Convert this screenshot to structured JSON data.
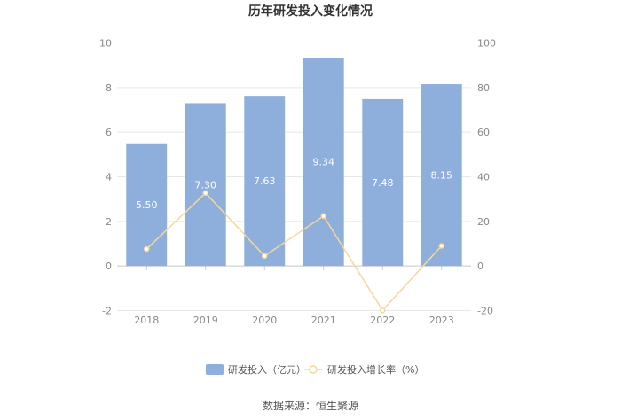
{
  "chart_data": {
    "type": "bar",
    "title": "历年研发投入变化情况",
    "categories": [
      "2018",
      "2019",
      "2020",
      "2021",
      "2022",
      "2023"
    ],
    "series": [
      {
        "name": "研发投入（亿元）",
        "type": "bar",
        "axis": "left",
        "color": "#8eaedb",
        "values": [
          5.5,
          7.3,
          7.63,
          9.34,
          7.48,
          8.15
        ],
        "labels": [
          "5.50",
          "7.30",
          "7.63",
          "9.34",
          "7.48",
          "8.15"
        ]
      },
      {
        "name": "研发投入增长率（%）",
        "type": "line",
        "axis": "right",
        "color": "#f8d79a",
        "values": [
          7.6,
          32.7,
          4.5,
          22.4,
          -19.9,
          9.0
        ]
      }
    ],
    "y_left": {
      "ylim": [
        -2,
        10
      ],
      "ticks": [
        "-2",
        "0",
        "2",
        "4",
        "6",
        "8",
        "10"
      ]
    },
    "y_right": {
      "ylim": [
        -20,
        100
      ],
      "ticks": [
        "-20",
        "0",
        "20",
        "40",
        "60",
        "80",
        "100"
      ]
    },
    "grid": true,
    "legend_position": "bottom"
  },
  "source_text": "数据来源：恒生聚源"
}
